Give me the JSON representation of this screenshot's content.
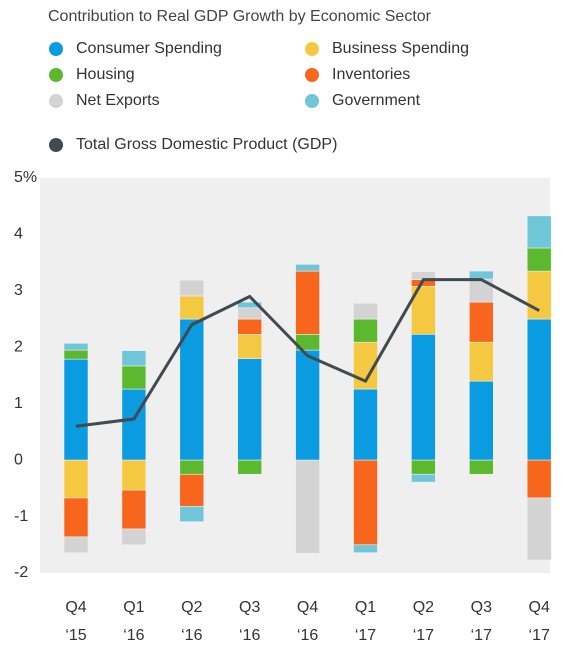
{
  "chart_data": {
    "type": "stacked-bar-line",
    "title": "Contribution to Real GDP Growth by Economic Sector",
    "categories": [
      [
        "Q4",
        "‘15"
      ],
      [
        "Q1",
        "‘16"
      ],
      [
        "Q2",
        "‘16"
      ],
      [
        "Q3",
        "‘16"
      ],
      [
        "Q4",
        "‘16"
      ],
      [
        "Q1",
        "‘17"
      ],
      [
        "Q2",
        "‘17"
      ],
      [
        "Q3",
        "‘17"
      ],
      [
        "Q4",
        "‘17"
      ]
    ],
    "series": [
      {
        "name": "Consumer Spending",
        "color": "#0b9be0",
        "values": [
          1.79,
          1.26,
          2.5,
          1.8,
          1.95,
          1.26,
          2.23,
          1.4,
          2.5
        ]
      },
      {
        "name": "Business Spending",
        "color": "#f5c842",
        "values": [
          -0.67,
          -0.53,
          0.41,
          0.43,
          0,
          0.83,
          0.85,
          0.69,
          0.85
        ]
      },
      {
        "name": "Housing",
        "color": "#5cb82e",
        "values": [
          0.16,
          0.41,
          -0.25,
          -0.25,
          0.28,
          0.41,
          -0.25,
          -0.25,
          0.41
        ]
      },
      {
        "name": "Inventories",
        "color": "#f7661c",
        "values": [
          -0.69,
          -0.69,
          -0.57,
          0.27,
          1.12,
          -1.5,
          0.12,
          0.71,
          -0.67
        ]
      },
      {
        "name": "Net Exports",
        "color": "#d3d3d3",
        "values": [
          -0.28,
          -0.28,
          0.28,
          0.2,
          -1.65,
          0.28,
          0.14,
          0.41,
          -1.1
        ]
      },
      {
        "name": "Government",
        "color": "#6fc6d8",
        "values": [
          0.12,
          0.27,
          -0.27,
          0.1,
          0.12,
          -0.14,
          -0.14,
          0.14,
          0.57
        ]
      }
    ],
    "line": {
      "name": "Total Gross Domestic Product (GDP)",
      "color": "#414a50",
      "values": [
        0.6,
        0.73,
        2.4,
        2.9,
        1.85,
        1.4,
        3.2,
        3.2,
        2.65
      ]
    },
    "ylim": [
      -2,
      5
    ],
    "yticks": [
      -2,
      -1,
      0,
      1,
      2,
      3,
      4,
      {
        "value": 5,
        "label": "5%"
      }
    ]
  }
}
